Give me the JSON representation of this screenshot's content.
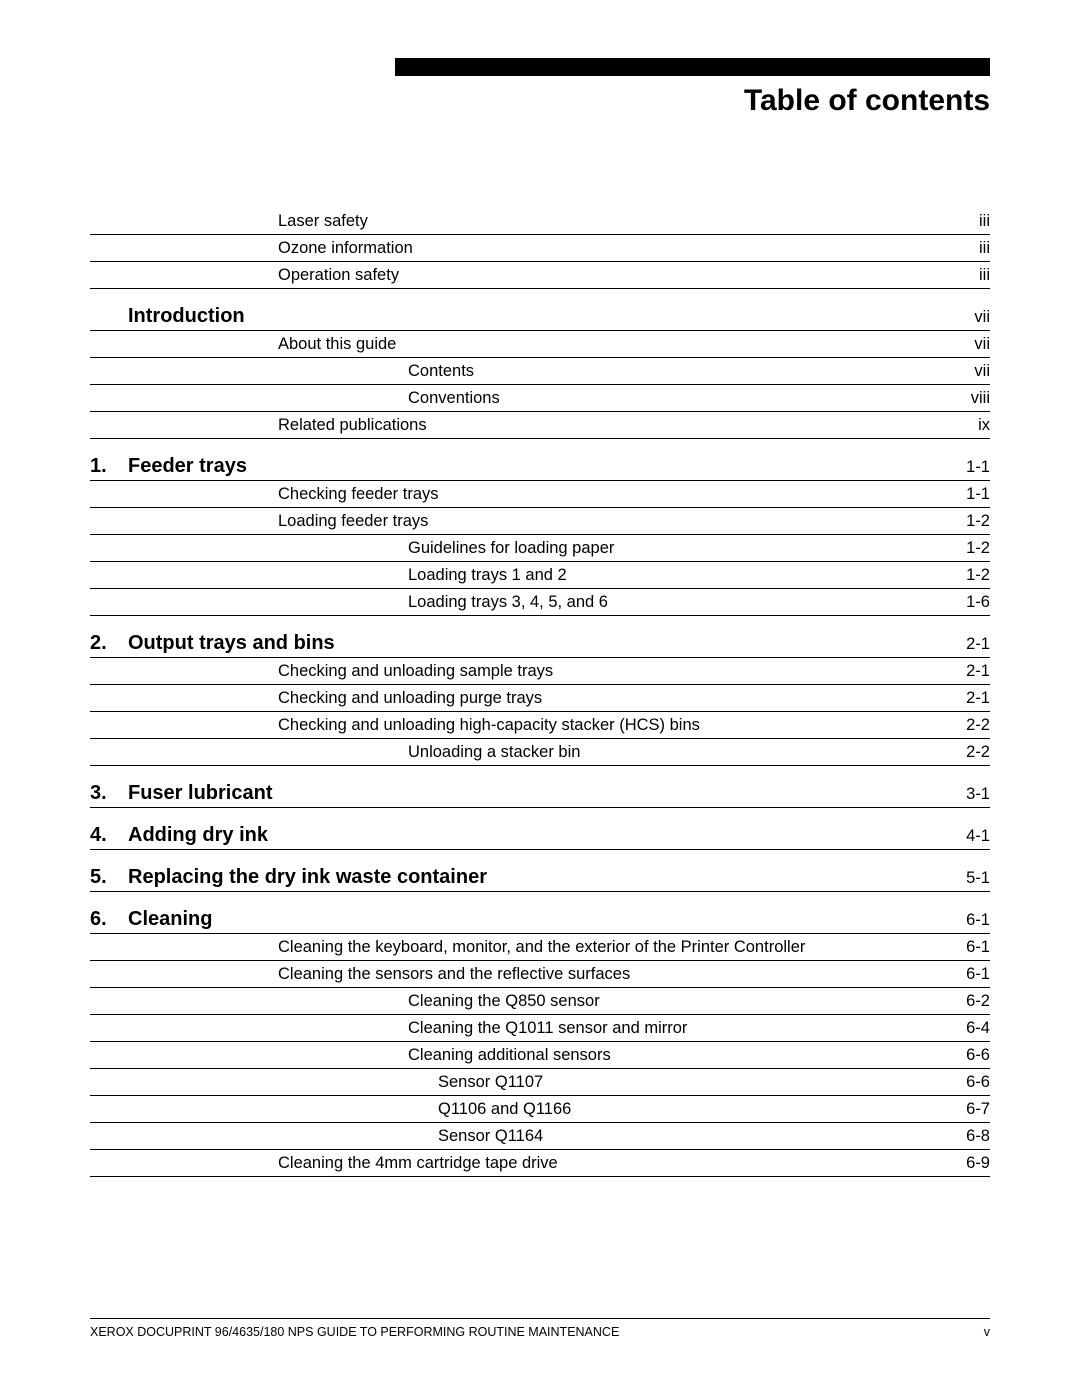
{
  "title": "Table of contents",
  "footer_text": "XEROX DOCUPRINT 96/4635/180 NPS GUIDE TO PERFORMING ROUTINE MAINTENANCE",
  "footer_page": "v",
  "entries": [
    {
      "level": "sub",
      "label": "Laser safety",
      "page": "iii"
    },
    {
      "level": "sub",
      "label": "Ozone information",
      "page": "iii"
    },
    {
      "level": "sub",
      "label": "Operation safety",
      "page": "iii"
    },
    {
      "level": "heading",
      "num": "",
      "label": "Introduction",
      "page": "vii"
    },
    {
      "level": "sub",
      "label": "About this guide",
      "page": "vii"
    },
    {
      "level": "subsub",
      "label": "Contents",
      "page": "vii"
    },
    {
      "level": "subsub",
      "label": "Conventions",
      "page": "viii"
    },
    {
      "level": "sub",
      "label": "Related publications",
      "page": "ix"
    },
    {
      "level": "heading",
      "num": "1.",
      "label": "Feeder trays",
      "page": "1-1"
    },
    {
      "level": "sub",
      "label": "Checking feeder trays",
      "page": "1-1"
    },
    {
      "level": "sub",
      "label": "Loading feeder trays",
      "page": "1-2"
    },
    {
      "level": "subsub",
      "label": "Guidelines for loading paper",
      "page": "1-2"
    },
    {
      "level": "subsub",
      "label": "Loading trays 1 and 2",
      "page": "1-2"
    },
    {
      "level": "subsub",
      "label": "Loading trays 3, 4, 5, and 6",
      "page": "1-6"
    },
    {
      "level": "heading",
      "num": "2.",
      "label": "Output trays and bins",
      "page": "2-1"
    },
    {
      "level": "sub",
      "label": "Checking and unloading sample trays",
      "page": "2-1"
    },
    {
      "level": "sub",
      "label": "Checking and unloading purge trays",
      "page": "2-1"
    },
    {
      "level": "sub",
      "label": "Checking and unloading high-capacity stacker (HCS) bins",
      "page": "2-2"
    },
    {
      "level": "subsub",
      "label": "Unloading a stacker bin",
      "page": "2-2"
    },
    {
      "level": "heading",
      "num": "3.",
      "label": "Fuser lubricant",
      "page": "3-1"
    },
    {
      "level": "heading",
      "num": "4.",
      "label": "Adding dry ink",
      "page": "4-1"
    },
    {
      "level": "heading",
      "num": "5.",
      "label": "Replacing the dry ink waste container",
      "page": "5-1"
    },
    {
      "level": "heading",
      "num": "6.",
      "label": "Cleaning",
      "page": "6-1"
    },
    {
      "level": "sub",
      "label": "Cleaning the keyboard, monitor, and the exterior of the Printer Controller",
      "page": "6-1"
    },
    {
      "level": "sub",
      "label": "Cleaning the sensors and the reflective surfaces",
      "page": "6-1"
    },
    {
      "level": "subsub",
      "label": "Cleaning the Q850 sensor",
      "page": "6-2"
    },
    {
      "level": "subsub",
      "label": "Cleaning the Q1011 sensor and mirror",
      "page": "6-4"
    },
    {
      "level": "subsub",
      "label": "Cleaning additional sensors",
      "page": "6-6"
    },
    {
      "level": "subsubsub",
      "label": "Sensor Q1107",
      "page": "6-6"
    },
    {
      "level": "subsubsub",
      "label": "Q1106 and Q1166",
      "page": "6-7"
    },
    {
      "level": "subsubsub",
      "label": "Sensor Q1164",
      "page": "6-8"
    },
    {
      "level": "sub",
      "label": "Cleaning the 4mm cartridge tape drive",
      "page": "6-9"
    }
  ]
}
